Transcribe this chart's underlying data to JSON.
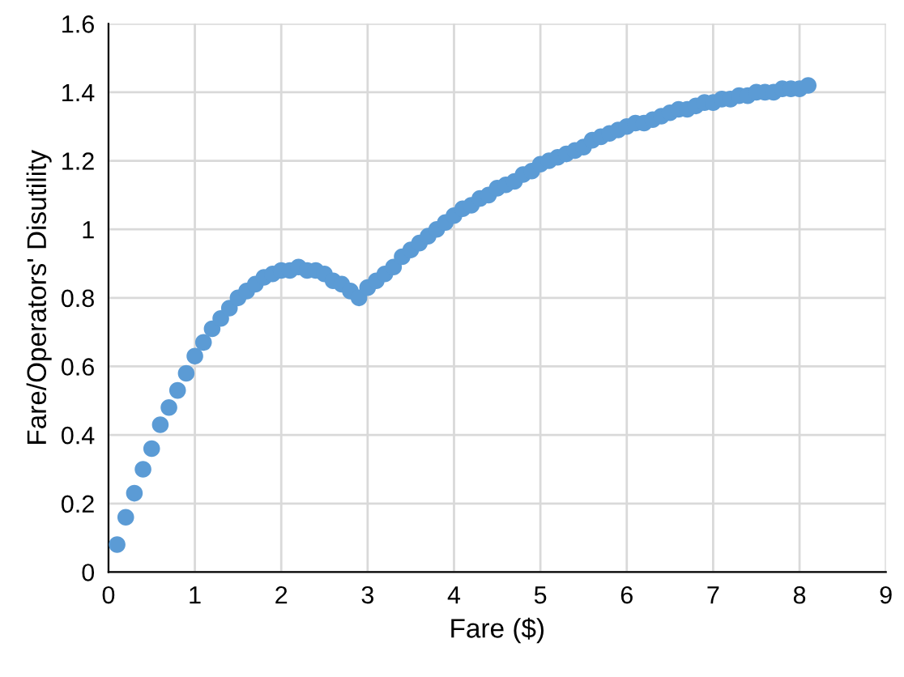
{
  "chart_data": {
    "type": "scatter",
    "xlabel": "Fare ($)",
    "ylabel": "Fare/Operators' Disutility",
    "xlim": [
      0,
      9
    ],
    "xticks": [
      0,
      1,
      2,
      3,
      4,
      5,
      6,
      7,
      8,
      9
    ],
    "ylim": [
      0,
      1.6
    ],
    "yticks": [
      0,
      0.2,
      0.4,
      0.6,
      0.8,
      1,
      1.2,
      1.4,
      1.6
    ],
    "grid": true,
    "marker": "circle",
    "series": [
      {
        "color": "#5b9bd5",
        "x": [
          0.1,
          0.2,
          0.3,
          0.4,
          0.5,
          0.6,
          0.7,
          0.8,
          0.9,
          1.0,
          1.1,
          1.2,
          1.3,
          1.4,
          1.5,
          1.6,
          1.7,
          1.8,
          1.9,
          2.0,
          2.1,
          2.2,
          2.3,
          2.4,
          2.5,
          2.6,
          2.7,
          2.8,
          2.9,
          3.0,
          3.1,
          3.2,
          3.3,
          3.4,
          3.5,
          3.6,
          3.7,
          3.8,
          3.9,
          4.0,
          4.1,
          4.2,
          4.3,
          4.4,
          4.5,
          4.6,
          4.7,
          4.8,
          4.9,
          5.0,
          5.1,
          5.2,
          5.3,
          5.4,
          5.5,
          5.6,
          5.7,
          5.8,
          5.9,
          6.0,
          6.1,
          6.2,
          6.3,
          6.4,
          6.5,
          6.6,
          6.7,
          6.8,
          6.9,
          7.0,
          7.1,
          7.2,
          7.3,
          7.4,
          7.5,
          7.6,
          7.7,
          7.8,
          7.9,
          8.0,
          8.1
        ],
        "values": [
          0.08,
          0.16,
          0.23,
          0.3,
          0.36,
          0.43,
          0.48,
          0.53,
          0.58,
          0.63,
          0.67,
          0.71,
          0.74,
          0.77,
          0.8,
          0.82,
          0.84,
          0.86,
          0.87,
          0.88,
          0.88,
          0.89,
          0.88,
          0.88,
          0.87,
          0.85,
          0.84,
          0.82,
          0.8,
          0.83,
          0.85,
          0.87,
          0.89,
          0.92,
          0.94,
          0.96,
          0.98,
          1.0,
          1.02,
          1.04,
          1.06,
          1.07,
          1.09,
          1.1,
          1.12,
          1.13,
          1.14,
          1.16,
          1.17,
          1.19,
          1.2,
          1.21,
          1.22,
          1.23,
          1.24,
          1.26,
          1.27,
          1.28,
          1.29,
          1.3,
          1.31,
          1.31,
          1.32,
          1.33,
          1.34,
          1.35,
          1.35,
          1.36,
          1.37,
          1.37,
          1.38,
          1.38,
          1.39,
          1.39,
          1.4,
          1.4,
          1.4,
          1.41,
          1.41,
          1.41,
          1.42
        ]
      }
    ]
  }
}
